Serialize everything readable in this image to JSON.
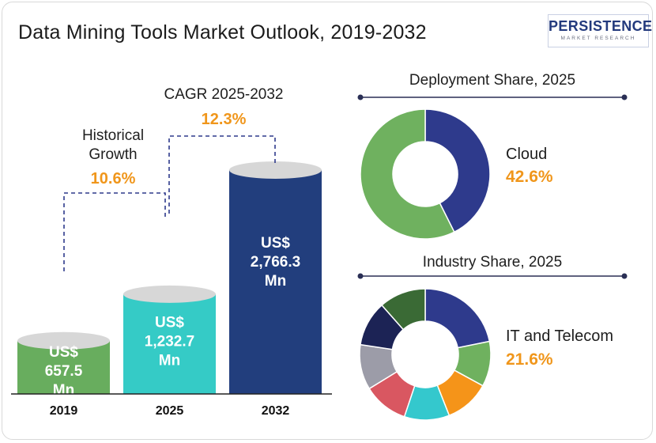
{
  "title": "Data Mining Tools Market Outlook, 2019-2032",
  "logo": {
    "brand": "PERSISTENCE",
    "sub": "MARKET RESEARCH"
  },
  "colors": {
    "accent": "#f0961b",
    "bar_2019": "#68ad5e",
    "bar_2025": "#35cbc6",
    "bar_2032": "#223e7d",
    "navy": "#1e2a5c"
  },
  "chart_data": [
    {
      "type": "bar",
      "categories": [
        "2019",
        "2025",
        "2032"
      ],
      "values": [
        657.5,
        1232.7,
        2766.3
      ],
      "value_labels": [
        "US$ 657.5 Mn",
        "US$ 1,232.7 Mn",
        "US$ 2,766.3 Mn"
      ],
      "annotations": [
        {
          "label": "Historical Growth",
          "value": "10.6%"
        },
        {
          "label": "CAGR 2025-2032",
          "value": "12.3%"
        }
      ]
    },
    {
      "type": "pie",
      "title": "Deployment Share, 2025",
      "slices": [
        {
          "name": "Cloud",
          "value": 42.6,
          "color": "#2e3a8c"
        },
        {
          "value": 57.4,
          "color": "#6fb15f"
        }
      ],
      "highlight": {
        "label": "Cloud",
        "value": "42.6%"
      }
    },
    {
      "type": "pie",
      "title": "Industry Share, 2025",
      "slices": [
        {
          "name": "IT and Telecom",
          "value": 21.6,
          "color": "#2e3a8c"
        },
        {
          "value": 11,
          "color": "#6fb15f"
        },
        {
          "value": 11,
          "color": "#f59419"
        },
        {
          "value": 11,
          "color": "#34c8cd"
        },
        {
          "value": 11,
          "color": "#d95761"
        },
        {
          "value": 11,
          "color": "#9c9ca8"
        },
        {
          "value": 11,
          "color": "#1c2355"
        },
        {
          "value": 11.4,
          "color": "#3a6a35"
        }
      ],
      "highlight": {
        "label": "IT and Telecom",
        "value": "21.6%"
      }
    }
  ]
}
